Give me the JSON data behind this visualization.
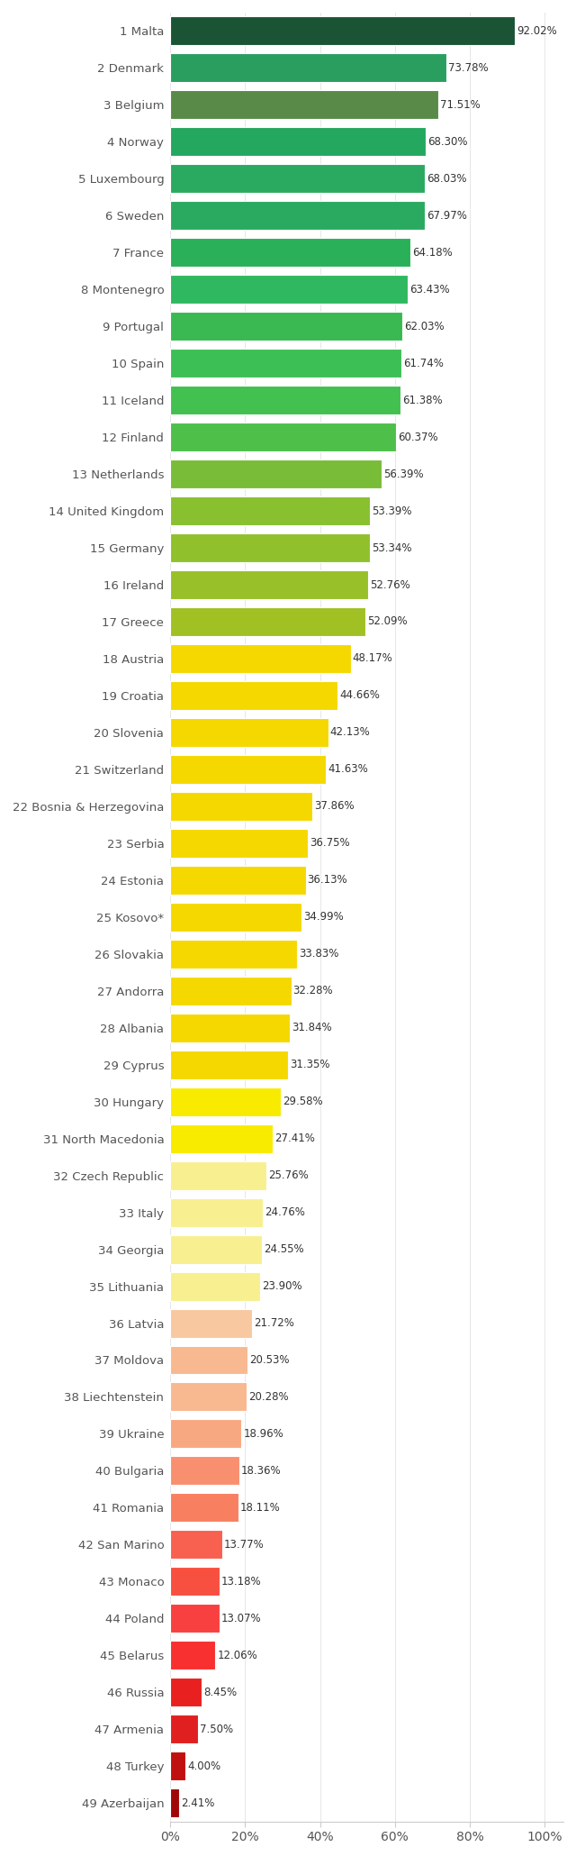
{
  "countries": [
    "1 Malta",
    "2 Denmark",
    "3 Belgium",
    "4 Norway",
    "5 Luxembourg",
    "6 Sweden",
    "7 France",
    "8 Montenegro",
    "9 Portugal",
    "10 Spain",
    "11 Iceland",
    "12 Finland",
    "13 Netherlands",
    "14 United Kingdom",
    "15 Germany",
    "16 Ireland",
    "17 Greece",
    "18 Austria",
    "19 Croatia",
    "20 Slovenia",
    "21 Switzerland",
    "22 Bosnia & Herzegovina",
    "23 Serbia",
    "24 Estonia",
    "25 Kosovo*",
    "26 Slovakia",
    "27 Andorra",
    "28 Albania",
    "29 Cyprus",
    "30 Hungary",
    "31 North Macedonia",
    "32 Czech Republic",
    "33 Italy",
    "34 Georgia",
    "35 Lithuania",
    "36 Latvia",
    "37 Moldova",
    "38 Liechtenstein",
    "39 Ukraine",
    "40 Bulgaria",
    "41 Romania",
    "42 San Marino",
    "43 Monaco",
    "44 Poland",
    "45 Belarus",
    "46 Russia",
    "47 Armenia",
    "48 Turkey",
    "49 Azerbaijan"
  ],
  "values": [
    92.02,
    73.78,
    71.51,
    68.3,
    68.03,
    67.97,
    64.18,
    63.43,
    62.03,
    61.74,
    61.38,
    60.37,
    56.39,
    53.39,
    53.34,
    52.76,
    52.09,
    48.17,
    44.66,
    42.13,
    41.63,
    37.86,
    36.75,
    36.13,
    34.99,
    33.83,
    32.28,
    31.84,
    31.35,
    29.58,
    27.41,
    25.76,
    24.76,
    24.55,
    23.9,
    21.72,
    20.53,
    20.28,
    18.96,
    18.36,
    18.11,
    13.77,
    13.18,
    13.07,
    12.06,
    8.45,
    7.5,
    4.0,
    2.41
  ],
  "bar_colors": [
    "#1a5435",
    "#2a9e5e",
    "#5a8a48",
    "#24a860",
    "#2aaa60",
    "#2aaa60",
    "#2ab058",
    "#30b860",
    "#3ab852",
    "#3cc055",
    "#42c050",
    "#4ec04a",
    "#78bc38",
    "#88c030",
    "#90c02c",
    "#98c028",
    "#a0c024",
    "#f5d800",
    "#f5d800",
    "#f5d800",
    "#f5d800",
    "#f5d800",
    "#f5d800",
    "#f5d800",
    "#f5d800",
    "#f5d800",
    "#f5d800",
    "#f5d800",
    "#f5d800",
    "#f8eb00",
    "#f8eb00",
    "#f8f090",
    "#f8f090",
    "#f8f090",
    "#f8f090",
    "#f8c8a0",
    "#f8b890",
    "#f8b890",
    "#f8a880",
    "#f89070",
    "#f88060",
    "#f86050",
    "#f85040",
    "#f84040",
    "#f83030",
    "#e82020",
    "#e02020",
    "#c01010",
    "#a00808"
  ],
  "xtick_labels": [
    "0%",
    "20%",
    "40%",
    "60%",
    "80%",
    "100%"
  ],
  "xtick_values": [
    0,
    20,
    40,
    60,
    80,
    100
  ],
  "background_color": "#ffffff",
  "label_fontsize": 9.5,
  "value_fontsize": 8.5,
  "tick_fontsize": 10,
  "bar_height": 0.78,
  "xlim_max": 105
}
